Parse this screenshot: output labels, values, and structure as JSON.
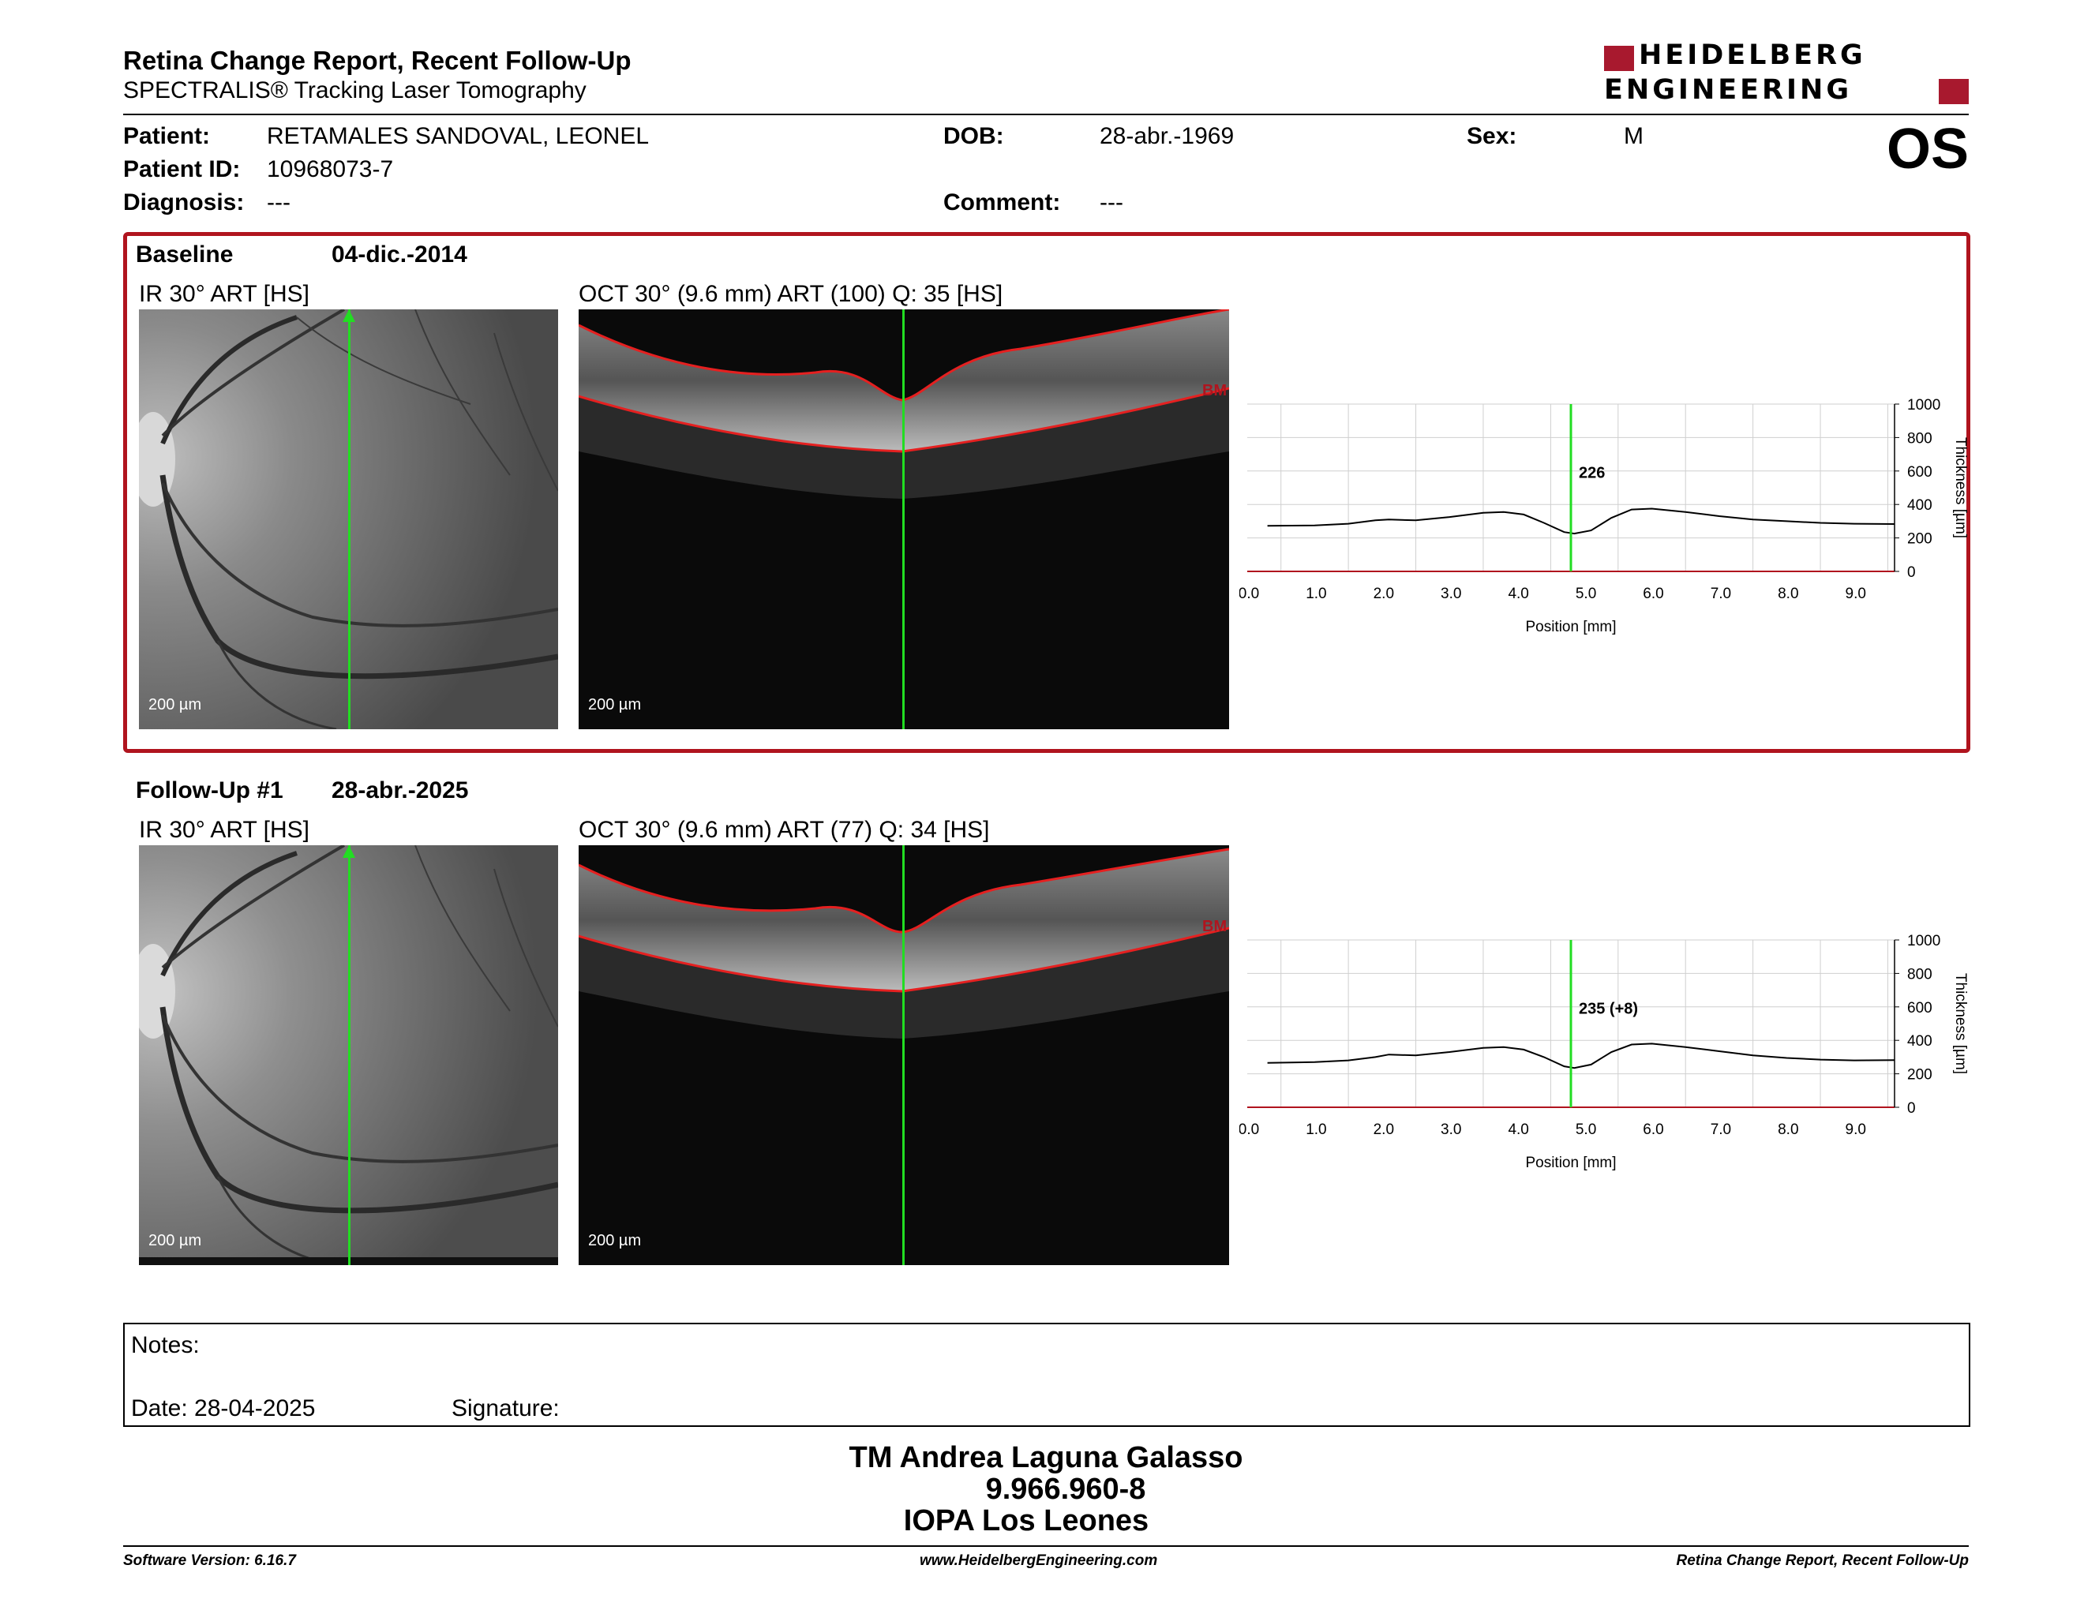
{
  "header": {
    "title": "Retina Change Report, Recent Follow-Up",
    "subtitle": "SPECTRALIS® Tracking Laser Tomography",
    "logo_line1": "HEIDELBERG",
    "logo_line2": "ENGINEERING",
    "eye": "OS"
  },
  "patient": {
    "patient_label": "Patient:",
    "patient_value": "RETAMALES SANDOVAL, LEONEL",
    "dob_label": "DOB:",
    "dob_value": "28-abr.-1969",
    "sex_label": "Sex:",
    "sex_value": "M",
    "id_label": "Patient ID:",
    "id_value": "10968073-7",
    "diagnosis_label": "Diagnosis:",
    "diagnosis_value": "---",
    "comment_label": "Comment:",
    "comment_value": "---"
  },
  "baseline": {
    "title": "Baseline",
    "date": "04-dic.-2014",
    "ir_caption": "IR 30° ART [HS]",
    "oct_caption": "OCT 30° (9.6 mm) ART (100) Q: 35 [HS]",
    "scale": "200 µm",
    "bm_label": "BM",
    "thickness_label": "226"
  },
  "followup": {
    "title": "Follow-Up #1",
    "date": "28-abr.-2025",
    "ir_caption": "IR 30° ART [HS]",
    "oct_caption": "OCT 30° (9.6 mm) ART (77) Q: 34 [HS]",
    "scale": "200 µm",
    "bm_label": "BM",
    "thickness_label": "235 (+8)"
  },
  "chart_data": [
    {
      "type": "line",
      "xlabel": "Position [mm]",
      "ylabel": "Thickness [µm]",
      "xlim": [
        0,
        9.6
      ],
      "ylim": [
        0,
        1000
      ],
      "xticks": [
        "0.0",
        "1.0",
        "2.0",
        "3.0",
        "4.0",
        "5.0",
        "6.0",
        "7.0",
        "8.0",
        "9.0"
      ],
      "yticks": [
        "0",
        "200",
        "400",
        "600",
        "800",
        "1000"
      ],
      "grid": true,
      "marker_x": 4.8,
      "marker_label": "226",
      "x": [
        0.3,
        1.0,
        1.5,
        1.9,
        2.1,
        2.5,
        3.0,
        3.5,
        3.8,
        4.1,
        4.4,
        4.7,
        4.85,
        5.1,
        5.4,
        5.7,
        6.0,
        6.5,
        7.0,
        7.5,
        8.0,
        8.5,
        9.0,
        9.6
      ],
      "series": [
        {
          "values": [
            272,
            275,
            285,
            305,
            310,
            305,
            325,
            350,
            355,
            340,
            290,
            235,
            226,
            245,
            320,
            370,
            375,
            355,
            330,
            310,
            300,
            290,
            285,
            283
          ]
        }
      ]
    },
    {
      "type": "line",
      "xlabel": "Position [mm]",
      "ylabel": "Thickness [µm]",
      "xlim": [
        0,
        9.6
      ],
      "ylim": [
        0,
        1000
      ],
      "xticks": [
        "0.0",
        "1.0",
        "2.0",
        "3.0",
        "4.0",
        "5.0",
        "6.0",
        "7.0",
        "8.0",
        "9.0"
      ],
      "yticks": [
        "0",
        "200",
        "400",
        "600",
        "800",
        "1000"
      ],
      "grid": true,
      "marker_x": 4.8,
      "marker_label": "235 (+8)",
      "x": [
        0.3,
        1.0,
        1.5,
        1.9,
        2.1,
        2.5,
        3.0,
        3.5,
        3.8,
        4.1,
        4.4,
        4.7,
        4.85,
        5.1,
        5.4,
        5.7,
        6.0,
        6.5,
        7.0,
        7.5,
        8.0,
        8.5,
        9.0,
        9.6
      ],
      "series": [
        {
          "values": [
            265,
            270,
            280,
            300,
            315,
            310,
            330,
            355,
            360,
            345,
            300,
            245,
            235,
            255,
            330,
            375,
            380,
            360,
            335,
            310,
            295,
            285,
            280,
            282
          ]
        }
      ]
    }
  ],
  "notes": {
    "notes_label": "Notes:",
    "date_label": "Date: 28-04-2025",
    "signature_label": "Signature:"
  },
  "signature": {
    "name": "TM Andrea Laguna Galasso",
    "id": "9.966.960-8",
    "org": "IOPA Los Leones"
  },
  "footer": {
    "version": "Software Version: 6.16.7",
    "url": "www.HeidelbergEngineering.com",
    "report": "Retina Change Report, Recent Follow-Up"
  }
}
